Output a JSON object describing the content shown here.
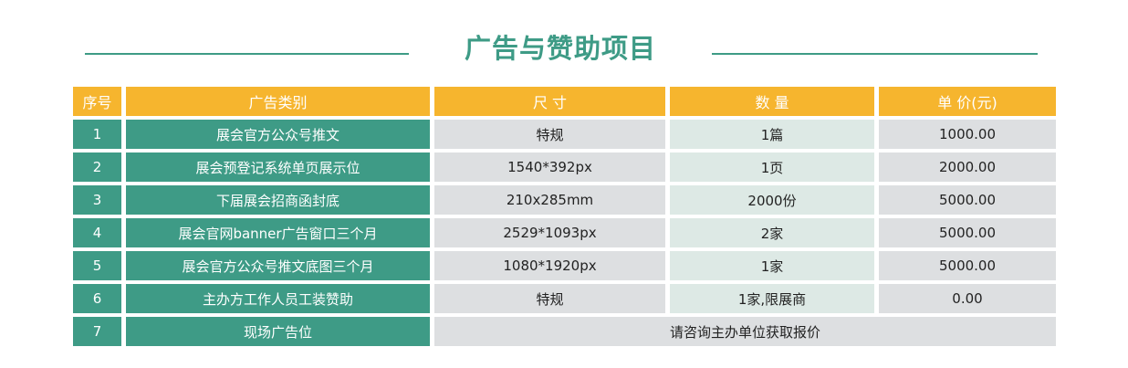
{
  "title": "广告与赞助项目",
  "header": [
    "序号",
    "广告类别",
    "尺 寸",
    "数 量",
    "单 价(元)"
  ],
  "rows": [
    {
      "no": "1",
      "type": "展会官方公众号推文",
      "size": "特规",
      "qty": "1篇",
      "price": "1000.00"
    },
    {
      "no": "2",
      "type": "展会预登记系统单页展示位",
      "size": "1540*392px",
      "qty": "1页",
      "price": "2000.00"
    },
    {
      "no": "3",
      "type": "下届展会招商函封底",
      "size": "210x285mm",
      "qty": "2000份",
      "price": "5000.00"
    },
    {
      "no": "4",
      "type": "展会官网banner广告窗口三个月",
      "size": "2529*1093px",
      "qty": "2家",
      "price": "5000.00"
    },
    {
      "no": "5",
      "type": "展会官方公众号推文底图三个月",
      "size": "1080*1920px",
      "qty": "1家",
      "price": "5000.00"
    },
    {
      "no": "6",
      "type": "主办方工作人员工装赞助",
      "size": "特规",
      "qty": "1家,限展商",
      "price": "0.00"
    },
    {
      "no": "7",
      "type": "现场广告位",
      "merged": "请咨询主办单位获取报价"
    }
  ],
  "colors": {
    "header_bg": "#f6b52e",
    "green": "#3e9b86",
    "gray": "#dddfe1",
    "light_green": "#dde9e5"
  }
}
